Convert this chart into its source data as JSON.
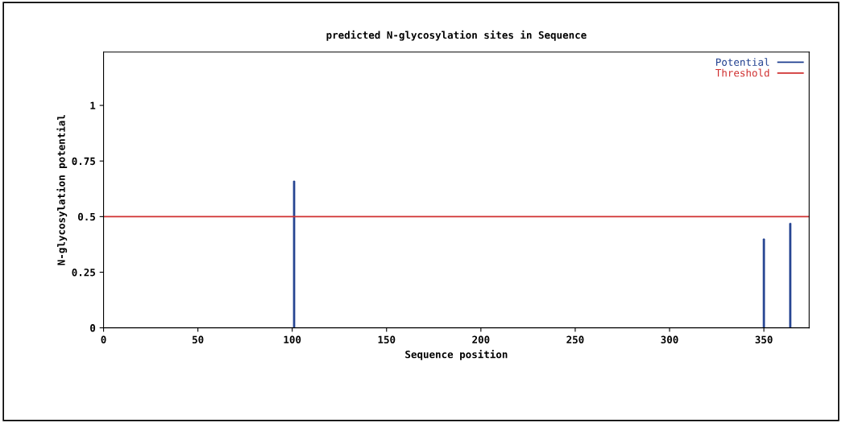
{
  "chart_data": {
    "type": "bar",
    "title": "predicted N-glycosylation sites in Sequence",
    "xlabel": "Sequence position",
    "ylabel": "N-glycosylation potential",
    "x": [
      101,
      350,
      364
    ],
    "series": [
      {
        "name": "Potential",
        "color": "#1f3f8f",
        "values": [
          0.66,
          0.4,
          0.47
        ]
      }
    ],
    "ref_lines": [
      {
        "axis": "y",
        "value": 0.5,
        "label": "Threshold",
        "color": "#d03030",
        "line_style": "solid"
      }
    ],
    "xlim": [
      0,
      374
    ],
    "xticks": [
      0,
      50,
      100,
      150,
      200,
      250,
      300,
      350
    ],
    "ylim": [
      0,
      1.24
    ],
    "yticks": [
      0,
      0.25,
      0.5,
      0.75,
      1
    ],
    "grid": false,
    "legend": "top right"
  }
}
